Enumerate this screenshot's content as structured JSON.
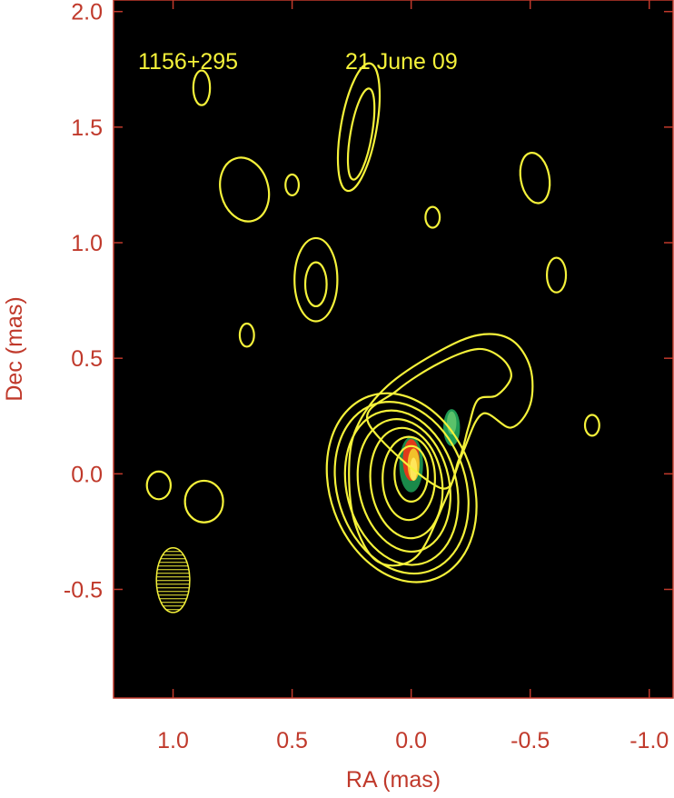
{
  "chart_data": {
    "type": "contour",
    "title": "",
    "xlabel": "RA (mas)",
    "ylabel": "Dec (mas)",
    "xlim": [
      1.25,
      -1.1
    ],
    "ylim": [
      -0.97,
      2.05
    ],
    "x_axis_reversed": true,
    "x_ticks": [
      1.0,
      0.5,
      0.0,
      -0.5,
      -1.0
    ],
    "x_tick_labels": [
      "1.0",
      "0.5",
      "0.0",
      "-0.5",
      "-1.0"
    ],
    "y_ticks": [
      2.0,
      1.5,
      1.0,
      0.5,
      0.0,
      -0.5
    ],
    "y_tick_labels": [
      "2.0",
      "1.5",
      "1.0",
      "0.5",
      "0.0",
      "-0.5"
    ],
    "annotations": {
      "source": "1156+295",
      "date": "21 June 09"
    },
    "colors": {
      "background": "#000000",
      "contour": "#f5f23a",
      "axis": "#c0392b",
      "frame": "#c0392b"
    },
    "core_contours": [
      {
        "cx": 0.0,
        "cy": 0.0,
        "rx": 0.07,
        "ry": 0.12,
        "rot": 0
      },
      {
        "cx": 0.01,
        "cy": -0.02,
        "rx": 0.11,
        "ry": 0.18,
        "rot": 0
      },
      {
        "cx": 0.02,
        "cy": -0.04,
        "rx": 0.15,
        "ry": 0.24,
        "rot": -8
      },
      {
        "cx": 0.03,
        "cy": -0.05,
        "rx": 0.19,
        "ry": 0.29,
        "rot": -12
      },
      {
        "cx": 0.04,
        "cy": -0.06,
        "rx": 0.23,
        "ry": 0.34,
        "rot": -15
      },
      {
        "cx": 0.04,
        "cy": -0.06,
        "rx": 0.27,
        "ry": 0.38,
        "rot": -18
      },
      {
        "cx": 0.04,
        "cy": -0.06,
        "rx": 0.3,
        "ry": 0.42,
        "rot": -20
      }
    ],
    "jet_contours": [
      [
        [
          0.22,
          0.22
        ],
        [
          0.1,
          0.38
        ],
        [
          -0.1,
          0.52
        ],
        [
          -0.28,
          0.6
        ],
        [
          -0.42,
          0.58
        ],
        [
          -0.5,
          0.46
        ],
        [
          -0.5,
          0.3
        ],
        [
          -0.42,
          0.2
        ],
        [
          -0.3,
          0.26
        ],
        [
          -0.22,
          0.1
        ],
        [
          -0.14,
          -0.12
        ],
        [
          -0.02,
          -0.36
        ],
        [
          0.14,
          -0.38
        ],
        [
          0.24,
          -0.2
        ],
        [
          0.26,
          0.05
        ]
      ],
      [
        [
          0.18,
          0.22
        ],
        [
          0.06,
          0.36
        ],
        [
          -0.12,
          0.48
        ],
        [
          -0.28,
          0.54
        ],
        [
          -0.38,
          0.5
        ],
        [
          -0.42,
          0.42
        ],
        [
          -0.36,
          0.34
        ],
        [
          -0.28,
          0.32
        ],
        [
          -0.24,
          0.2
        ],
        [
          -0.2,
          0.06
        ],
        [
          -0.12,
          -0.06
        ]
      ]
    ],
    "isolated_contours": [
      {
        "cx": 0.88,
        "cy": 1.67,
        "rx": 0.035,
        "ry": 0.075,
        "rot": 0
      },
      {
        "cx": 0.7,
        "cy": 1.23,
        "rx": 0.1,
        "ry": 0.14,
        "rot": -15
      },
      {
        "cx": 0.5,
        "cy": 1.25,
        "rx": 0.028,
        "ry": 0.045,
        "rot": 0
      },
      {
        "cx": 0.22,
        "cy": 1.5,
        "rx": 0.075,
        "ry": 0.28,
        "rot": 10
      },
      {
        "cx": 0.21,
        "cy": 1.47,
        "rx": 0.045,
        "ry": 0.2,
        "rot": 10
      },
      {
        "cx": -0.09,
        "cy": 1.11,
        "rx": 0.03,
        "ry": 0.045,
        "rot": 0
      },
      {
        "cx": -0.52,
        "cy": 1.28,
        "rx": 0.06,
        "ry": 0.11,
        "rot": -10
      },
      {
        "cx": -0.61,
        "cy": 0.86,
        "rx": 0.04,
        "ry": 0.075,
        "rot": 0
      },
      {
        "cx": 0.4,
        "cy": 0.84,
        "rx": 0.09,
        "ry": 0.18,
        "rot": 0
      },
      {
        "cx": 0.4,
        "cy": 0.82,
        "rx": 0.045,
        "ry": 0.095,
        "rot": 0
      },
      {
        "cx": 0.69,
        "cy": 0.6,
        "rx": 0.03,
        "ry": 0.05,
        "rot": 0
      },
      {
        "cx": 1.06,
        "cy": -0.05,
        "rx": 0.05,
        "ry": 0.06,
        "rot": 0
      },
      {
        "cx": 0.87,
        "cy": -0.12,
        "rx": 0.08,
        "ry": 0.09,
        "rot": 0
      },
      {
        "cx": -0.76,
        "cy": 0.21,
        "rx": 0.03,
        "ry": 0.045,
        "rot": 0
      }
    ],
    "beam": {
      "cx": 1.0,
      "cy": -0.46,
      "rx": 0.07,
      "ry": 0.14,
      "rot": 0
    },
    "color_image": [
      {
        "x": 0.0,
        "y": 0.04,
        "rx": 0.05,
        "ry": 0.12,
        "color": "#1a8a4a"
      },
      {
        "x": 0.0,
        "y": 0.06,
        "rx": 0.035,
        "ry": 0.09,
        "color": "#e23a1a"
      },
      {
        "x": -0.01,
        "y": 0.04,
        "rx": 0.025,
        "ry": 0.07,
        "color": "#f2c12a"
      },
      {
        "x": -0.01,
        "y": 0.02,
        "rx": 0.015,
        "ry": 0.05,
        "color": "#ffe65a"
      },
      {
        "x": -0.17,
        "y": 0.2,
        "rx": 0.035,
        "ry": 0.08,
        "color": "#1f9a55"
      },
      {
        "x": -0.17,
        "y": 0.22,
        "rx": 0.02,
        "ry": 0.05,
        "color": "#5ac26a"
      }
    ]
  }
}
